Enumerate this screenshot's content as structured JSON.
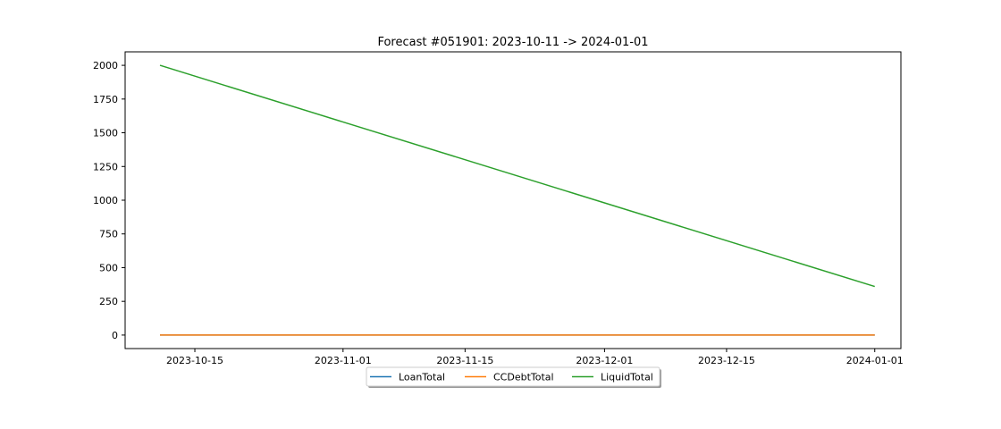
{
  "chart_data": {
    "type": "line",
    "title": "Forecast #051901: 2023-10-11 -> 2024-01-01",
    "xlabel": "",
    "ylabel": "",
    "x_ticks": [
      "2023-10-15",
      "2023-11-01",
      "2023-11-15",
      "2023-12-01",
      "2023-12-15",
      "2024-01-01"
    ],
    "y_ticks": [
      0,
      250,
      500,
      750,
      1000,
      1250,
      1500,
      1750,
      2000
    ],
    "xlim": [
      "2023-10-07",
      "2024-01-04"
    ],
    "ylim": [
      -100,
      2100
    ],
    "grid": false,
    "legend_position": "bottom-center",
    "series": [
      {
        "name": "LoanTotal",
        "color": "#1f77b4",
        "x": [
          "2023-10-11",
          "2024-01-01"
        ],
        "y": [
          0,
          0
        ]
      },
      {
        "name": "CCDebtTotal",
        "color": "#ff7f0e",
        "x": [
          "2023-10-11",
          "2024-01-01"
        ],
        "y": [
          0,
          0
        ]
      },
      {
        "name": "LiquidTotal",
        "color": "#2ca02c",
        "x": [
          "2023-10-11",
          "2024-01-01"
        ],
        "y": [
          2000,
          360
        ]
      }
    ]
  }
}
